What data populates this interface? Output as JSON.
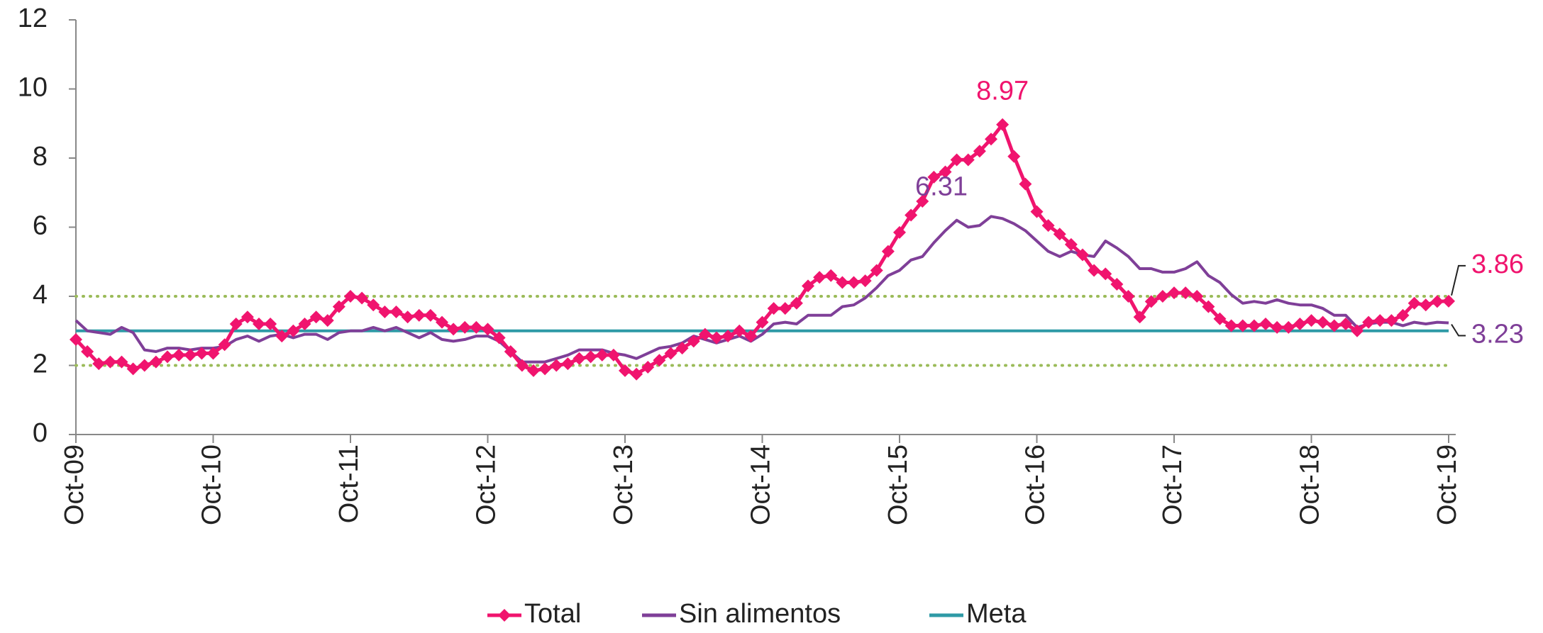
{
  "chart_data": {
    "type": "line",
    "categories": [
      "Oct-09",
      null,
      null,
      null,
      null,
      null,
      null,
      null,
      null,
      null,
      null,
      null,
      "Oct-10",
      null,
      null,
      null,
      null,
      null,
      null,
      null,
      null,
      null,
      null,
      null,
      "Oct-11",
      null,
      null,
      null,
      null,
      null,
      null,
      null,
      null,
      null,
      null,
      null,
      "Oct-12",
      null,
      null,
      null,
      null,
      null,
      null,
      null,
      null,
      null,
      null,
      null,
      "Oct-13",
      null,
      null,
      null,
      null,
      null,
      null,
      null,
      null,
      null,
      null,
      null,
      "Oct-14",
      null,
      null,
      null,
      null,
      null,
      null,
      null,
      null,
      null,
      null,
      null,
      "Oct-15",
      null,
      null,
      null,
      null,
      null,
      null,
      null,
      null,
      null,
      null,
      null,
      "Oct-16",
      null,
      null,
      null,
      null,
      null,
      null,
      null,
      null,
      null,
      null,
      null,
      "Oct-17",
      null,
      null,
      null,
      null,
      null,
      null,
      null,
      null,
      null,
      null,
      null,
      "Oct-18",
      null,
      null,
      null,
      null,
      null,
      null,
      null,
      null,
      null,
      null,
      null,
      "Oct-19"
    ],
    "series": [
      {
        "name": "Total",
        "color": "#f0146e",
        "marker": "diamond",
        "values": [
          2.75,
          2.4,
          2.05,
          2.1,
          2.1,
          1.9,
          2.0,
          2.1,
          2.25,
          2.3,
          2.3,
          2.35,
          2.35,
          2.6,
          3.2,
          3.4,
          3.2,
          3.2,
          2.85,
          3.0,
          3.2,
          3.4,
          3.3,
          3.7,
          4.0,
          3.95,
          3.75,
          3.55,
          3.55,
          3.4,
          3.45,
          3.45,
          3.25,
          3.05,
          3.1,
          3.1,
          3.05,
          2.8,
          2.4,
          2.0,
          1.85,
          1.9,
          2.0,
          2.05,
          2.2,
          2.25,
          2.3,
          2.3,
          1.85,
          1.75,
          1.95,
          2.15,
          2.35,
          2.5,
          2.7,
          2.9,
          2.8,
          2.85,
          3.0,
          2.85,
          3.25,
          3.65,
          3.65,
          3.8,
          4.3,
          4.55,
          4.6,
          4.4,
          4.4,
          4.45,
          4.75,
          5.3,
          5.85,
          6.35,
          6.75,
          7.45,
          7.6,
          7.95,
          7.95,
          8.2,
          8.55,
          8.97,
          8.05,
          7.25,
          6.45,
          6.05,
          5.8,
          5.5,
          5.2,
          4.75,
          4.65,
          4.35,
          4.0,
          3.4,
          3.85,
          4.0,
          4.1,
          4.1,
          4.0,
          3.7,
          3.35,
          3.15,
          3.15,
          3.15,
          3.2,
          3.1,
          3.1,
          3.2,
          3.3,
          3.25,
          3.15,
          3.2,
          3.0,
          3.25,
          3.3,
          3.3,
          3.45,
          3.8,
          3.75,
          3.85,
          3.86
        ]
      },
      {
        "name": "Sin alimentos",
        "color": "#7f3f98",
        "values": [
          3.3,
          3.0,
          2.95,
          2.9,
          3.1,
          2.95,
          2.45,
          2.4,
          2.5,
          2.5,
          2.45,
          2.5,
          2.5,
          2.55,
          2.75,
          2.85,
          2.7,
          2.85,
          2.9,
          2.8,
          2.9,
          2.9,
          2.75,
          2.95,
          3.0,
          3.0,
          3.1,
          3.0,
          3.1,
          2.95,
          2.8,
          2.95,
          2.75,
          2.7,
          2.75,
          2.85,
          2.85,
          2.7,
          2.4,
          2.1,
          2.1,
          2.1,
          2.2,
          2.3,
          2.45,
          2.45,
          2.45,
          2.35,
          2.3,
          2.2,
          2.35,
          2.5,
          2.55,
          2.65,
          2.85,
          2.75,
          2.65,
          2.75,
          2.85,
          2.7,
          2.9,
          3.2,
          3.25,
          3.2,
          3.45,
          3.45,
          3.45,
          3.7,
          3.75,
          3.95,
          4.25,
          4.6,
          4.75,
          5.05,
          5.15,
          5.55,
          5.9,
          6.2,
          6.0,
          6.05,
          6.31,
          6.25,
          6.1,
          5.9,
          5.6,
          5.3,
          5.15,
          5.3,
          5.2,
          5.15,
          5.6,
          5.4,
          5.15,
          4.8,
          4.8,
          4.7,
          4.7,
          4.8,
          5.0,
          4.6,
          4.4,
          4.05,
          3.8,
          3.85,
          3.8,
          3.9,
          3.8,
          3.75,
          3.75,
          3.65,
          3.45,
          3.45,
          3.1,
          3.2,
          3.25,
          3.25,
          3.15,
          3.25,
          3.2,
          3.25,
          3.23
        ]
      },
      {
        "name": "Meta",
        "color": "#2e9aa6",
        "values": [
          3,
          3,
          3,
          3,
          3,
          3,
          3,
          3,
          3,
          3,
          3,
          3,
          3,
          3,
          3,
          3,
          3,
          3,
          3,
          3,
          3,
          3,
          3,
          3,
          3,
          3,
          3,
          3,
          3,
          3,
          3,
          3,
          3,
          3,
          3,
          3,
          3,
          3,
          3,
          3,
          3,
          3,
          3,
          3,
          3,
          3,
          3,
          3,
          3,
          3,
          3,
          3,
          3,
          3,
          3,
          3,
          3,
          3,
          3,
          3,
          3,
          3,
          3,
          3,
          3,
          3,
          3,
          3,
          3,
          3,
          3,
          3,
          3,
          3,
          3,
          3,
          3,
          3,
          3,
          3,
          3,
          3,
          3,
          3,
          3,
          3,
          3,
          3,
          3,
          3,
          3,
          3,
          3,
          3,
          3,
          3,
          3,
          3,
          3,
          3,
          3,
          3,
          3,
          3,
          3,
          3,
          3,
          3,
          3,
          3,
          3,
          3,
          3,
          3,
          3,
          3,
          3,
          3,
          3,
          3,
          3
        ]
      }
    ],
    "reference_lines": [
      2,
      4
    ],
    "reference_color": "#9bbb59",
    "annotations": [
      {
        "text": "8.97",
        "series": 0,
        "index": 81
      },
      {
        "text": "6.31",
        "series": 1,
        "index": 80
      },
      {
        "text": "3.86",
        "series": 0,
        "index": 120
      },
      {
        "text": "3.23",
        "series": 1,
        "index": 120
      }
    ],
    "ylim": [
      0,
      12
    ],
    "yticks": [
      0,
      2,
      4,
      6,
      8,
      10,
      12
    ],
    "grid": false,
    "legend": "bottom"
  }
}
